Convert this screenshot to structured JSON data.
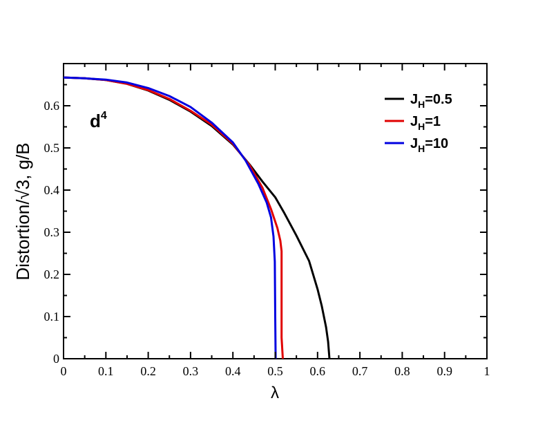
{
  "chart_data": {
    "type": "line",
    "title": "",
    "xlabel": "λ",
    "ylabel": "Distortion/√3, g/B",
    "xlim": [
      0,
      1
    ],
    "ylim": [
      0,
      0.7
    ],
    "xticks": [
      0,
      0.1,
      0.2,
      0.3,
      0.4,
      0.5,
      0.6,
      0.7,
      0.8,
      0.9,
      1
    ],
    "xtick_labels": [
      "0",
      "0.1",
      "0.2",
      "0.3",
      "0.4",
      "0.5",
      "0.6",
      "0.7",
      "0.8",
      "0.9",
      "1"
    ],
    "yticks": [
      0,
      0.1,
      0.2,
      0.3,
      0.4,
      0.5,
      0.6
    ],
    "ytick_labels": [
      "0",
      "0.1",
      "0.2",
      "0.3",
      "0.4",
      "0.5",
      "0.6"
    ],
    "grid": false,
    "legend_position": "top-right",
    "annotation": {
      "base": "d",
      "sup": "4"
    },
    "series": [
      {
        "name": "J_H=0.5",
        "label_main": "J",
        "label_sub": "H",
        "label_tail": "=0.5",
        "color": "#000000",
        "x": [
          0,
          0.05,
          0.1,
          0.15,
          0.2,
          0.25,
          0.3,
          0.35,
          0.4,
          0.44,
          0.47,
          0.5,
          0.52,
          0.55,
          0.58,
          0.6,
          0.61,
          0.62,
          0.625,
          0.628
        ],
        "y": [
          0.667,
          0.665,
          0.661,
          0.652,
          0.636,
          0.614,
          0.586,
          0.552,
          0.508,
          0.46,
          0.42,
          0.383,
          0.348,
          0.292,
          0.232,
          0.165,
          0.125,
          0.075,
          0.04,
          0.0
        ]
      },
      {
        "name": "J_H=1",
        "label_main": "J",
        "label_sub": "H",
        "label_tail": "=1",
        "color": "#e00000",
        "x": [
          0,
          0.05,
          0.1,
          0.15,
          0.2,
          0.25,
          0.3,
          0.35,
          0.4,
          0.44,
          0.47,
          0.49,
          0.505,
          0.512,
          0.515,
          0.515,
          0.518
        ],
        "y": [
          0.667,
          0.665,
          0.661,
          0.652,
          0.637,
          0.616,
          0.588,
          0.555,
          0.51,
          0.458,
          0.405,
          0.355,
          0.31,
          0.28,
          0.255,
          0.05,
          0.0
        ]
      },
      {
        "name": "J_H=10",
        "label_main": "J",
        "label_sub": "H",
        "label_tail": "=10",
        "color": "#0000e0",
        "x": [
          0,
          0.05,
          0.1,
          0.15,
          0.2,
          0.25,
          0.3,
          0.35,
          0.4,
          0.43,
          0.46,
          0.48,
          0.49,
          0.496,
          0.499,
          0.5,
          0.501
        ],
        "y": [
          0.667,
          0.665,
          0.662,
          0.655,
          0.642,
          0.623,
          0.597,
          0.56,
          0.513,
          0.47,
          0.415,
          0.37,
          0.335,
          0.29,
          0.23,
          0.1,
          0.0
        ]
      }
    ]
  }
}
